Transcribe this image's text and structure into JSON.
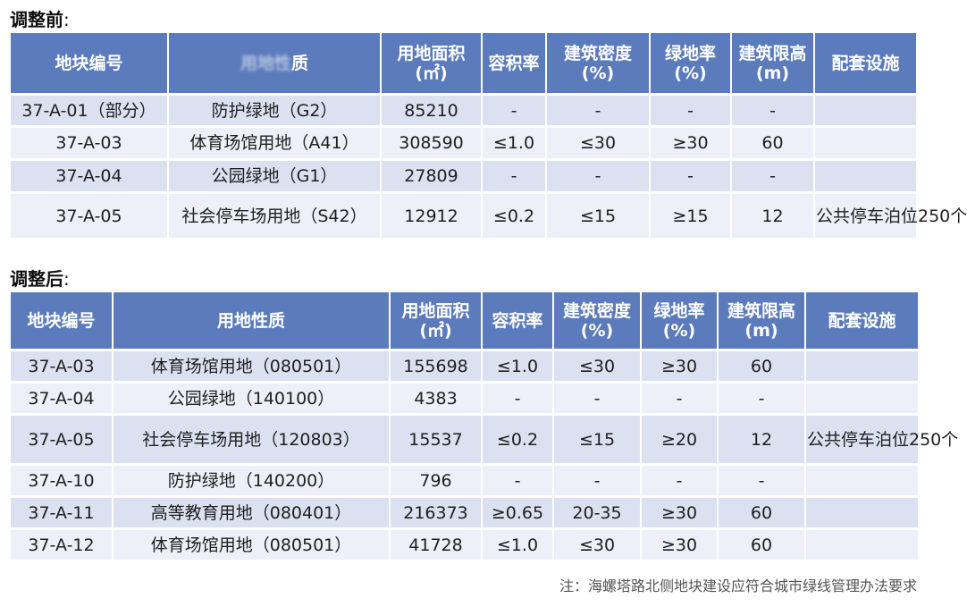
{
  "before": {
    "title": "调整前",
    "headers": [
      "地块编号",
      "质",
      "用地面积(㎡)",
      "容积率",
      "建筑密度(%)",
      "绿地率(%)",
      "建筑限高(m)",
      "配套设施"
    ],
    "rows": [
      [
        "37-A-01（部分）",
        "防护绿地（G2）",
        "85210",
        "-",
        "-",
        "-",
        "-",
        ""
      ],
      [
        "37-A-03",
        "体育场馆用地（A41）",
        "308590",
        "≤1.0",
        "≤30",
        "≥30",
        "60",
        ""
      ],
      [
        "37-A-04",
        "公园绿地（G1）",
        "27809",
        "-",
        "-",
        "-",
        "-",
        ""
      ],
      [
        "37-A-05",
        "社会停车场用地（S42）",
        "12912",
        "≤0.2",
        "≤15",
        "≥15",
        "12",
        "公共停车泊位250个"
      ]
    ]
  },
  "after": {
    "title": "调整后",
    "headers": [
      "地块编号",
      "用地性质",
      "用地面积(㎡)",
      "容积率",
      "建筑密度(%)",
      "绿地率(%)",
      "建筑限高(m)",
      "配套设施"
    ],
    "rows": [
      [
        "37-A-03",
        "体育场馆用地（080501）",
        "155698",
        "≤1.0",
        "≤30",
        "≥30",
        "60",
        ""
      ],
      [
        "37-A-04",
        "公园绿地（140100）",
        "4383",
        "-",
        "-",
        "-",
        "-",
        ""
      ],
      [
        "37-A-05",
        "社会停车场用地（120803）",
        "15537",
        "≤0.2",
        "≤15",
        "≥20",
        "12",
        "公共停车泊位250个"
      ],
      [
        "37-A-10",
        "防护绿地（140200）",
        "796",
        "-",
        "-",
        "-",
        "-",
        ""
      ],
      [
        "37-A-11",
        "高等教育用地（080401）",
        "216373",
        "≥0.65",
        "20-35",
        "≥30",
        "60",
        ""
      ],
      [
        "37-A-12",
        "体育场馆用地（080501）",
        "41728",
        "≤1.0",
        "≤30",
        "≥30",
        "60",
        ""
      ]
    ]
  },
  "note": "注：海螺塔路北侧地块建设应符合城市绿线管理办法要求",
  "colors": {
    "header_bg": "#5b7bbd",
    "row_odd": "#dbe1f1",
    "row_even": "#edf0f8"
  }
}
